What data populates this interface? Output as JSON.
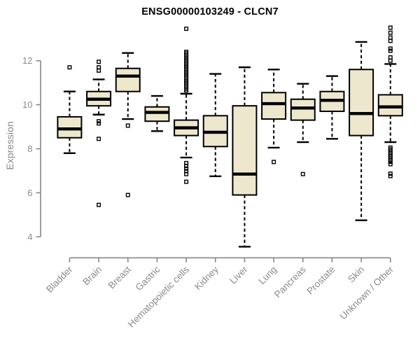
{
  "chart_data": {
    "type": "boxplot",
    "title": "ENSG00000103249 - CLCN7",
    "ylabel": "Expression",
    "xlabel": "",
    "yticks": [
      4,
      6,
      8,
      10,
      12
    ],
    "ylim": [
      3.4,
      13.6
    ],
    "grid": false,
    "legend": "none",
    "categories": [
      "Bladder",
      "Brain",
      "Breast",
      "Gastric",
      "Hematopoietic cells",
      "Kidney",
      "Liver",
      "Lung",
      "Pancreas",
      "Prostate",
      "Skin",
      "Unknown / Other"
    ],
    "series": [
      {
        "name": "Bladder",
        "low": 7.8,
        "q1": 8.5,
        "median": 8.9,
        "q3": 9.45,
        "high": 10.6,
        "outliers": [
          11.7
        ]
      },
      {
        "name": "Brain",
        "low": 9.55,
        "q1": 9.95,
        "median": 10.25,
        "q3": 10.6,
        "high": 11.15,
        "outliers": [
          11.95,
          11.7,
          11.55,
          9.25,
          9.15,
          8.45,
          5.45
        ]
      },
      {
        "name": "Breast",
        "low": 9.35,
        "q1": 10.6,
        "median": 11.3,
        "q3": 11.65,
        "high": 12.35,
        "outliers": [
          9.05,
          5.9
        ]
      },
      {
        "name": "Gastric",
        "low": 8.8,
        "q1": 9.25,
        "median": 9.65,
        "q3": 9.9,
        "high": 10.4,
        "outliers": []
      },
      {
        "name": "Hematopoietic cells",
        "low": 7.6,
        "q1": 8.6,
        "median": 8.95,
        "q3": 9.3,
        "high": 10.5,
        "outliers": [
          13.45,
          12.4,
          12.33,
          12.26,
          12.19,
          12.12,
          12.05,
          11.98,
          11.91,
          11.84,
          11.77,
          11.7,
          11.63,
          11.56,
          11.49,
          11.42,
          11.35,
          11.28,
          11.21,
          11.14,
          11.07,
          11.0,
          10.93,
          10.86,
          10.79,
          10.72,
          10.65,
          7.35,
          7.22,
          7.1,
          6.98,
          6.85,
          6.5
        ]
      },
      {
        "name": "Kidney",
        "low": 6.75,
        "q1": 8.1,
        "median": 8.75,
        "q3": 9.5,
        "high": 11.4,
        "outliers": []
      },
      {
        "name": "Liver",
        "low": 3.55,
        "q1": 5.9,
        "median": 6.85,
        "q3": 9.95,
        "high": 11.7,
        "outliers": []
      },
      {
        "name": "Lung",
        "low": 8.05,
        "q1": 9.35,
        "median": 10.05,
        "q3": 10.55,
        "high": 11.6,
        "outliers": [
          7.4
        ]
      },
      {
        "name": "Pancreas",
        "low": 8.3,
        "q1": 9.3,
        "median": 9.85,
        "q3": 10.25,
        "high": 10.95,
        "outliers": [
          6.85
        ]
      },
      {
        "name": "Prostate",
        "low": 8.45,
        "q1": 9.7,
        "median": 10.2,
        "q3": 10.6,
        "high": 11.3,
        "outliers": []
      },
      {
        "name": "Skin",
        "low": 4.75,
        "q1": 8.6,
        "median": 9.6,
        "q3": 11.6,
        "high": 12.85,
        "outliers": []
      },
      {
        "name": "Unknown / Other",
        "low": 8.3,
        "q1": 9.5,
        "median": 9.9,
        "q3": 10.45,
        "high": 11.85,
        "outliers": [
          13.5,
          13.27,
          13.05,
          12.9,
          12.55,
          12.45,
          12.15,
          12.0,
          8.05,
          7.97,
          7.89,
          7.81,
          7.73,
          7.65,
          7.57,
          7.49,
          7.41,
          7.3,
          6.87,
          6.76
        ]
      }
    ]
  },
  "colors": {
    "box_fill": "#EDE7CD",
    "box_stroke": "#000000",
    "axis": "#878787",
    "tick_label": "#8a8a8a",
    "title": "#000000"
  }
}
